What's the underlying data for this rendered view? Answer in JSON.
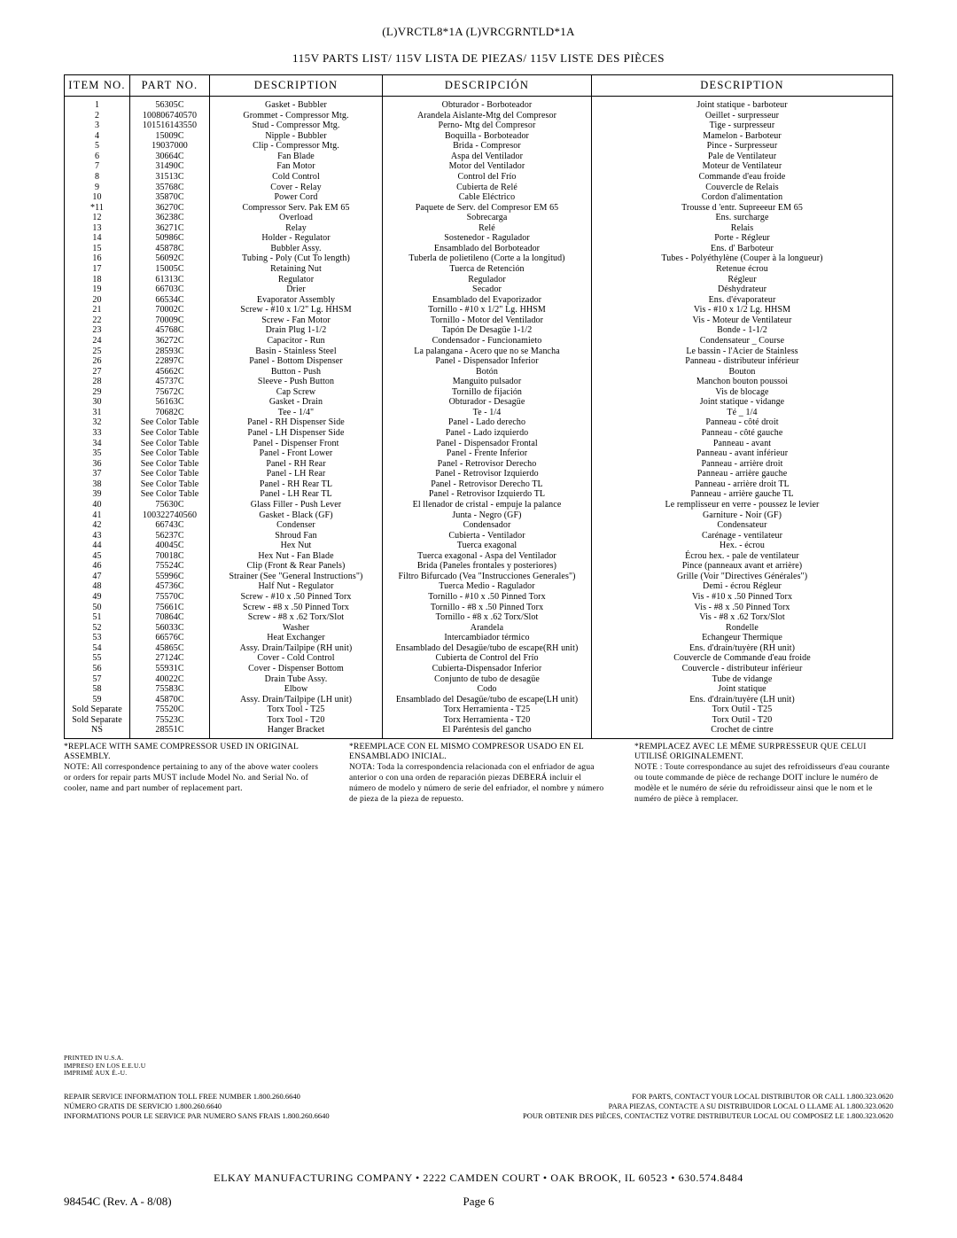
{
  "header_codes": "(L)VRCTL8*1A    (L)VRCGRNTLD*1A",
  "subtitle": "115V PARTS LIST/  115V LISTA DE PIEZAS/  115V LISTE DES PIÈCES",
  "columns": {
    "itemno": "ITEM  NO.",
    "partno": "PART  NO.",
    "desc_en": "DESCRIPTION",
    "desc_es": "DESCRIPCIÓN",
    "desc_fr": "DESCRIPTION"
  },
  "rows": [
    {
      "i": "1",
      "p": "56305C",
      "en": "Gasket - Bubbler",
      "es": "Obturador - Borboteador",
      "fr": "Joint statique - barboteur"
    },
    {
      "i": "2",
      "p": "100806740570",
      "en": "Grommet - Compressor Mtg.",
      "es": "Arandela Aislante-Mtg del Compresor",
      "fr": "Oeillet - surpresseur"
    },
    {
      "i": "3",
      "p": "101516143550",
      "en": "Stud - Compressor Mtg.",
      "es": "Perno- Mtg del Compresor",
      "fr": "Tige - surpresseur"
    },
    {
      "i": "4",
      "p": "15009C",
      "en": "Nipple - Bubbler",
      "es": "Boquilla - Borboteador",
      "fr": "Mamelon - Barboteur"
    },
    {
      "i": "5",
      "p": "19037000",
      "en": "Clip - Compressor Mtg.",
      "es": "Brida - Compresor",
      "fr": "Pince - Surpresseur"
    },
    {
      "i": "6",
      "p": "30664C",
      "en": "Fan Blade",
      "es": "Aspa del Ventilador",
      "fr": "Pale de Ventilateur"
    },
    {
      "i": "7",
      "p": "31490C",
      "en": "Fan Motor",
      "es": "Motor del Ventilador",
      "fr": "Moteur de Ventilateur"
    },
    {
      "i": "8",
      "p": "31513C",
      "en": "Cold Control",
      "es": "Control del Frío",
      "fr": "Commande d'eau froide"
    },
    {
      "i": "9",
      "p": "35768C",
      "en": "Cover - Relay",
      "es": "Cubierta de Relé",
      "fr": "Couvercle de Relais"
    },
    {
      "i": "10",
      "p": "35870C",
      "en": "Power Cord",
      "es": "Cable Eléctrico",
      "fr": "Cordon d'alimentation"
    },
    {
      "i": "*11",
      "p": "36270C",
      "en": "Compressor Serv. Pak EM 65",
      "es": "Paquete de Serv. del Compresor EM 65",
      "fr": "Trousse d 'entr. Supreeeur EM 65"
    },
    {
      "i": "12",
      "p": "36238C",
      "en": "Overload",
      "es": "Sobrecarga",
      "fr": "Ens. surcharge"
    },
    {
      "i": "13",
      "p": "36271C",
      "en": "Relay",
      "es": "Relé",
      "fr": "Relais"
    },
    {
      "i": "14",
      "p": "50986C",
      "en": "Holder - Regulator",
      "es": "Sostenedor - Ragulador",
      "fr": "Porte - Régleur"
    },
    {
      "i": "15",
      "p": "45878C",
      "en": "Bubbler Assy.",
      "es": "Ensamblado del Borboteador",
      "fr": "Ens. d' Barboteur"
    },
    {
      "i": "16",
      "p": "56092C",
      "en": "Tubing - Poly (Cut To length)",
      "es": "Tuberla de polietileno (Corte a la longitud)",
      "fr": "Tubes - Polyéthylène (Couper à la longueur)"
    },
    {
      "i": "17",
      "p": "15005C",
      "en": "Retaining Nut",
      "es": "Tuerca de Retención",
      "fr": "Retenue  écrou"
    },
    {
      "i": "18",
      "p": "61313C",
      "en": "Regulator",
      "es": "Regulador",
      "fr": "Régleur"
    },
    {
      "i": "19",
      "p": "66703C",
      "en": "Drier",
      "es": "Secador",
      "fr": "Déshydrateur"
    },
    {
      "i": "20",
      "p": "66534C",
      "en": "Evaporator Assembly",
      "es": "Ensamblado del Evaporizador",
      "fr": "Ens. d'évaporateur"
    },
    {
      "i": "21",
      "p": "70002C",
      "en": "Screw - #10 x 1/2\" Lg. HHSM",
      "es": "Tornillo - #10 x 1/2\" Lg. HHSM",
      "fr": "Vis - #10 x 1/2 Lg. HHSM"
    },
    {
      "i": "22",
      "p": "70009C",
      "en": "Screw - Fan Motor",
      "es": "Tornillo - Motor del Ventilador",
      "fr": "Vis - Moteur de Ventilateur"
    },
    {
      "i": "23",
      "p": "45768C",
      "en": "Drain Plug 1-1/2",
      "es": "Tapón De Desagüe 1-1/2",
      "fr": "Bonde - 1-1/2"
    },
    {
      "i": "24",
      "p": "36272C",
      "en": "Capacitor - Run",
      "es": "Condensador - Funcionamieto",
      "fr": "Condensateur _ Course"
    },
    {
      "i": "25",
      "p": "28593C",
      "en": "Basin - Stainless Steel",
      "es": "La palangana - Acero que no se Mancha",
      "fr": "Le bassin - l'Acier de Stainless"
    },
    {
      "i": "26",
      "p": "22897C",
      "en": "Panel - Bottom Dispenser",
      "es": "Panel - Dispensador Inferior",
      "fr": "Panneau - distributeur inférieur"
    },
    {
      "i": "27",
      "p": "45662C",
      "en": "Button - Push",
      "es": "Botón",
      "fr": "Bouton"
    },
    {
      "i": "28",
      "p": "45737C",
      "en": "Sleeve - Push Button",
      "es": "Manguito pulsador",
      "fr": "Manchon bouton poussoi"
    },
    {
      "i": "29",
      "p": "75672C",
      "en": "Cap Screw",
      "es": "Tornillo de fijación",
      "fr": "Vis de blocage"
    },
    {
      "i": "30",
      "p": "56163C",
      "en": "Gasket - Drain",
      "es": "Obturador - Desagüe",
      "fr": "Joint statique - vidange"
    },
    {
      "i": "31",
      "p": "70682C",
      "en": "Tee - 1/4\"",
      "es": "Te - 1/4",
      "fr": "Té _ 1/4"
    },
    {
      "i": "32",
      "p": "See Color Table",
      "en": "Panel - RH Dispenser Side",
      "es": "Panel - Lado derecho",
      "fr": "Panneau - côté droit"
    },
    {
      "i": "33",
      "p": "See Color Table",
      "en": "Panel - LH Dispenser Side",
      "es": "Panel - Lado izquierdo",
      "fr": "Panneau - côté gauche"
    },
    {
      "i": "34",
      "p": "See Color Table",
      "en": "Panel - Dispenser Front",
      "es": "Panel - Dispensador Frontal",
      "fr": "Panneau - avant"
    },
    {
      "i": "35",
      "p": "See Color Table",
      "en": "Panel - Front Lower",
      "es": "Panel - Frente Inferior",
      "fr": "Panneau - avant inférieur"
    },
    {
      "i": "36",
      "p": "See Color Table",
      "en": "Panel - RH Rear",
      "es": "Panel - Retrovisor Derecho",
      "fr": "Panneau - arrière droit"
    },
    {
      "i": "37",
      "p": "See Color Table",
      "en": "Panel - LH Rear",
      "es": "Panel - Retrovisor Izquierdo",
      "fr": "Panneau - arrière gauche"
    },
    {
      "i": "38",
      "p": "See Color Table",
      "en": "Panel - RH Rear TL",
      "es": "Panel - Retrovisor Derecho TL",
      "fr": "Panneau - arrière droit TL"
    },
    {
      "i": "39",
      "p": "See Color Table",
      "en": "Panel - LH Rear TL",
      "es": "Panel - Retrovisor Izquierdo TL",
      "fr": "Panneau - arrière gauche TL"
    },
    {
      "i": "40",
      "p": "75630C",
      "en": "Glass Filler - Push Lever",
      "es": "El llenador de cristal - empuje la palance",
      "fr": "Le remplisseur en verre - poussez le levier"
    },
    {
      "i": "41",
      "p": "100322740560",
      "en": "Gasket - Black (GF)",
      "es": "Junta - Negro (GF)",
      "fr": "Garniture - Noir (GF)"
    },
    {
      "i": "42",
      "p": "66743C",
      "en": "Condenser",
      "es": "Condensador",
      "fr": "Condensateur"
    },
    {
      "i": "43",
      "p": "56237C",
      "en": "Shroud Fan",
      "es": "Cubierta - Ventilador",
      "fr": "Carénage - ventilateur"
    },
    {
      "i": "44",
      "p": "40045C",
      "en": "Hex Nut",
      "es": "Tuerca exagonal",
      "fr": "Hex. - écrou"
    },
    {
      "i": "45",
      "p": "70018C",
      "en": "Hex Nut - Fan Blade",
      "es": "Tuerca exagonal - Aspa del Ventilador",
      "fr": "Écrou hex. - pale de ventilateur"
    },
    {
      "i": "46",
      "p": "75524C",
      "en": "Clip (Front & Rear Panels)",
      "es": "Brida (Paneles frontales y posteriores)",
      "fr": "Pince (panneaux avant et arrière)"
    },
    {
      "i": "47",
      "p": "55996C",
      "en": "Strainer (See \"General Instructions\")",
      "es": "Filtro Bifurcado (Vea \"Instrucciones Generales\")",
      "fr": "Grille (Voir \"Directives Générales\")"
    },
    {
      "i": "48",
      "p": "45736C",
      "en": "Half Nut - Regulator",
      "es": "Tuerca Medio - Ragulador",
      "fr": "Demi - écrou Régleur"
    },
    {
      "i": "49",
      "p": "75570C",
      "en": "Screw - #10 x .50 Pinned Torx",
      "es": "Tornillo - #10 x .50 Pinned Torx",
      "fr": "Vis - #10 x .50 Pinned Torx"
    },
    {
      "i": "50",
      "p": "75661C",
      "en": "Screw - #8 x .50 Pinned Torx",
      "es": "Tornillo - #8 x .50 Pinned Torx",
      "fr": "Vis - #8 x .50 Pinned Torx"
    },
    {
      "i": "51",
      "p": "70864C",
      "en": "Screw - #8 x .62 Torx/Slot",
      "es": "Tornillo - #8 x .62 Torx/Slot",
      "fr": "Vis - #8 x .62 Torx/Slot"
    },
    {
      "i": "52",
      "p": "56033C",
      "en": "Washer",
      "es": "Arandela",
      "fr": "Rondelle"
    },
    {
      "i": "53",
      "p": "66576C",
      "en": "Heat Exchanger",
      "es": "Intercambiador térmico",
      "fr": "Echangeur Thermique"
    },
    {
      "i": "54",
      "p": "45865C",
      "en": "Assy. Drain/Tailpipe (RH unit)",
      "es": "Ensamblado del Desagüe/tubo de escape(RH unit)",
      "fr": "Ens. d'drain/tuyère (RH unit)"
    },
    {
      "i": "55",
      "p": "27124C",
      "en": "Cover - Cold Control",
      "es": "Cubierta de Control del Frío",
      "fr": "Couvercle de Commande d'eau froide"
    },
    {
      "i": "56",
      "p": "55931C",
      "en": "Cover - Dispenser Bottom",
      "es": "Cubierta-Dispensador Inferior",
      "fr": "Couvercle - distributeur inférieur"
    },
    {
      "i": "57",
      "p": "40022C",
      "en": "Drain Tube Assy.",
      "es": "Conjunto de tubo de desagüe",
      "fr": "Tube de vidange"
    },
    {
      "i": "58",
      "p": "75583C",
      "en": "Elbow",
      "es": "Codo",
      "fr": "Joint statique"
    },
    {
      "i": "59",
      "p": "45870C",
      "en": "Assy. Drain/Tailpipe (LH unit)",
      "es": "Ensamblado del Desagüe/tubo de escape(LH unit)",
      "fr": "Ens. d'drain/tuyère (LH unit)"
    },
    {
      "i": "Sold Separate",
      "p": "75520C",
      "en": "Torx Tool - T25",
      "es": "Torx Herramienta - T25",
      "fr": "Torx Outil - T25"
    },
    {
      "i": "Sold Separate",
      "p": "75523C",
      "en": "Torx Tool - T20",
      "es": "Torx Herramienta - T20",
      "fr": "Torx Outil - T20"
    },
    {
      "i": "NS",
      "p": "28551C",
      "en": "Hanger Bracket",
      "es": "El Paréntesis del gancho",
      "fr": "Crochet de cintre"
    }
  ],
  "notes": {
    "en": "*REPLACE WITH SAME COMPRESSOR USED IN ORIGINAL ASSEMBLY.\nNOTE: All correspondence pertaining to any of the above water coolers or orders for repair parts MUST include Model No. and Serial No. of cooler, name and part number of replacement part.",
    "es": "*REEMPLACE CON EL MISMO COMPRESOR USADO EN EL ENSAMBLADO INICIAL.\nNOTA: Toda la correspondencia relacionada con el enfriador de agua anterior o con una orden de reparación piezas DEBERÁ incluir el número de modelo y número de serie del enfriador, el nombre y número de pieza de la pieza de repuesto.",
    "fr": "*REMPLACEZ AVEC LE MÊME SURPRESSEUR QUE CELUI UTILISÉ ORIGINALEMENT.\nNOTE : Toute correspondance au sujet des refroidisseurs d'eau courante ou toute commande de pièce de rechange DOIT inclure le numéro de modèle et le numéro de série du refroidisseur ainsi que le nom et le numéro de pièce à remplacer."
  },
  "printed": {
    "l1": "PRINTED IN U.S.A.",
    "l2": "IMPRESO EN LOS E.E.U.U",
    "l3": "IMPRIMÉ AUX É.-U."
  },
  "service": {
    "left1": "REPAIR SERVICE INFORMATION TOLL FREE NUMBER 1.800.260.6640",
    "left2": "NÚMERO GRATIS DE SERVICIO 1.800.260.6640",
    "left3": "INFORMATIONS POUR LE SERVICE PAR NUMERO SANS FRAIS 1.800.260.6640",
    "right1": "FOR PARTS, CONTACT YOUR LOCAL DISTRIBUTOR OR CALL 1.800.323.0620",
    "right2": "PARA PIEZAS, CONTACTE A SU DISTRIBUIDOR LOCAL O LLAME AL 1.800.323.0620",
    "right3": "POUR OBTENIR DES PIÈCES, CONTACTEZ VOTRE DISTRIBUTEUR LOCAL OU COMPOSEZ LE 1.800.323.0620"
  },
  "footer": {
    "company": "ELKAY MANUFACTURING COMPANY • 2222 CAMDEN COURT • OAK BROOK, IL 60523 • 630.574.8484",
    "rev": "98454C    (Rev. A  -  8/08)",
    "page": "Page 6"
  }
}
